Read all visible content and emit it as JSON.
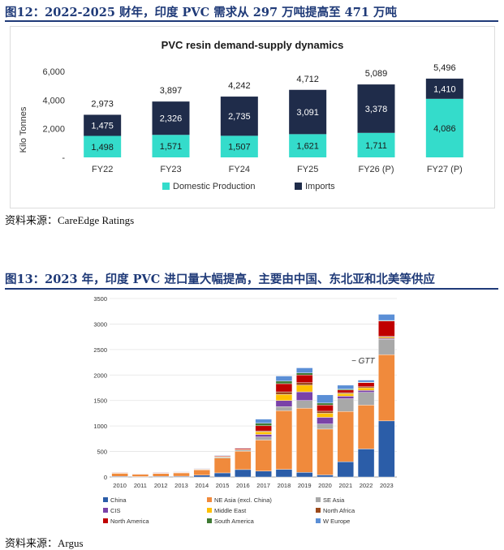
{
  "figure1": {
    "caption": "图12：2022-2025 财年，印度 PVC 需求从 297 万吨提高至 471 万吨",
    "source": "资料来源：CareEdge Ratings"
  },
  "figure2": {
    "caption": "图13：2023 年，印度 PVC 进口量大幅提高，主要由中国、东北亚和北美等供应",
    "source": "资料来源：Argus"
  },
  "colors": {
    "domestic": "#34dccb",
    "imports": "#1f2c4a",
    "China": "#2b5da8",
    "NE Asia (excl. China)": "#f08a3c",
    "SE Asia": "#a8a8a8",
    "CIS": "#7a42a8",
    "Middle East": "#ffc000",
    "North Africa": "#9b4a1c",
    "North America": "#c00000",
    "South America": "#3e7a33",
    "W Europe": "#5b8fd6"
  },
  "chart_data": [
    {
      "type": "bar",
      "stacked": true,
      "title": "PVC resin demand-supply dynamics",
      "xlabel": "",
      "ylabel": "Kilo Tonnes",
      "ylim": [
        0,
        6000
      ],
      "ytick_labels": [
        "-",
        "2,000",
        "4,000",
        "6,000"
      ],
      "categories": [
        "FY22",
        "FY23",
        "FY24",
        "FY25",
        "FY26 (P)",
        "FY27 (P)"
      ],
      "series": [
        {
          "name": "Domestic Production",
          "values": [
            1498,
            1571,
            1507,
            1621,
            1711,
            4086
          ],
          "labels": [
            "1,498",
            "1,571",
            "1,507",
            "1,621",
            "1,711",
            "4,086"
          ]
        },
        {
          "name": "Imports",
          "values": [
            1475,
            2326,
            2735,
            3091,
            3378,
            1410
          ],
          "labels": [
            "1,475",
            "2,326",
            "2,735",
            "3,091",
            "3,378",
            "1,410"
          ]
        }
      ],
      "totals": [
        2973,
        3897,
        4242,
        4712,
        5089,
        5496
      ],
      "total_labels": [
        "2,973",
        "3,897",
        "4,242",
        "4,712",
        "5,089",
        "5,496"
      ],
      "legend": "bottom"
    },
    {
      "type": "bar",
      "stacked": true,
      "title": "",
      "xlabel": "",
      "ylabel": "",
      "ylim": [
        0,
        3500
      ],
      "ytick_labels": [
        "0",
        "500",
        "1000",
        "1500",
        "2000",
        "2500",
        "3000",
        "3500"
      ],
      "categories": [
        "2010",
        "2011",
        "2012",
        "2013",
        "2014",
        "2015",
        "2016",
        "2017",
        "2018",
        "2019",
        "2020",
        "2021",
        "2022",
        "2023"
      ],
      "series": [
        {
          "name": "China",
          "values": [
            12,
            8,
            12,
            15,
            35,
            80,
            145,
            115,
            150,
            90,
            40,
            300,
            550,
            1100
          ]
        },
        {
          "name": "NE Asia (excl. China)",
          "values": [
            60,
            45,
            55,
            65,
            105,
            290,
            360,
            610,
            1150,
            1260,
            900,
            985,
            860,
            1300
          ]
        },
        {
          "name": "SE Asia",
          "values": [
            5,
            4,
            5,
            6,
            10,
            20,
            25,
            60,
            80,
            150,
            100,
            250,
            250,
            300
          ]
        },
        {
          "name": "CIS",
          "values": [
            0,
            0,
            0,
            0,
            0,
            0,
            0,
            50,
            120,
            170,
            130,
            50,
            40,
            20
          ]
        },
        {
          "name": "Middle East",
          "values": [
            5,
            3,
            5,
            5,
            5,
            10,
            10,
            50,
            120,
            130,
            80,
            50,
            50,
            20
          ]
        },
        {
          "name": "North Africa",
          "values": [
            0,
            0,
            0,
            0,
            0,
            0,
            0,
            20,
            50,
            50,
            40,
            20,
            20,
            20
          ]
        },
        {
          "name": "North America",
          "values": [
            10,
            8,
            10,
            10,
            10,
            15,
            20,
            100,
            160,
            150,
            120,
            50,
            80,
            300
          ]
        },
        {
          "name": "South America",
          "values": [
            0,
            0,
            0,
            0,
            0,
            0,
            0,
            50,
            50,
            40,
            40,
            20,
            10,
            10
          ]
        },
        {
          "name": "W Europe",
          "values": [
            3,
            2,
            3,
            4,
            5,
            10,
            10,
            80,
            100,
            100,
            160,
            75,
            40,
            120
          ]
        }
      ],
      "annotations": [
        "− GTT"
      ],
      "legend": "bottom"
    }
  ]
}
